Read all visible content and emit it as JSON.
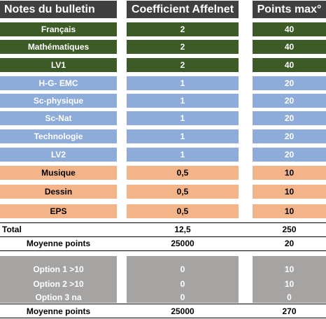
{
  "headers": [
    "Notes du bulletin",
    "Coefficient Affelnet",
    "Points max°"
  ],
  "subject_rows": [
    {
      "subject": "Français",
      "coef": "2",
      "points": "40",
      "group": "green"
    },
    {
      "subject": "Mathématiques",
      "coef": "2",
      "points": "40",
      "group": "green"
    },
    {
      "subject": "LV1",
      "coef": "2",
      "points": "40",
      "group": "green"
    },
    {
      "subject": "H-G- EMC",
      "coef": "1",
      "points": "20",
      "group": "blue"
    },
    {
      "subject": "Sc-physique",
      "coef": "1",
      "points": "20",
      "group": "blue"
    },
    {
      "subject": "Sc-Nat",
      "coef": "1",
      "points": "20",
      "group": "blue"
    },
    {
      "subject": "Technologie",
      "coef": "1",
      "points": "20",
      "group": "blue"
    },
    {
      "subject": "LV2",
      "coef": "1",
      "points": "20",
      "group": "blue"
    },
    {
      "subject": "Musique",
      "coef": "0,5",
      "points": "10",
      "group": "orange"
    },
    {
      "subject": "Dessin",
      "coef": "0,5",
      "points": "10",
      "group": "orange"
    },
    {
      "subject": "EPS",
      "coef": "0,5",
      "points": "10",
      "group": "orange"
    }
  ],
  "total": {
    "label": "Total",
    "coef": "12,5",
    "points": "250"
  },
  "moyenne": {
    "label": "Moyenne points",
    "coef": "25000",
    "points": "20"
  },
  "option_rows": [
    {
      "label": "Option 1 >10",
      "coef": "0",
      "points": "10"
    },
    {
      "label": "Option 2 >10",
      "coef": "0",
      "points": "10"
    },
    {
      "label": "Option 3 na",
      "coef": "0",
      "points": "0"
    }
  ],
  "final": {
    "label": "Moyenne points",
    "coef": "25000",
    "points": "270"
  },
  "colors": {
    "header": "#404040",
    "green": "#3d5b26",
    "blue": "#8eacda",
    "orange": "#f3b489",
    "gray": "#a6a3a3"
  }
}
